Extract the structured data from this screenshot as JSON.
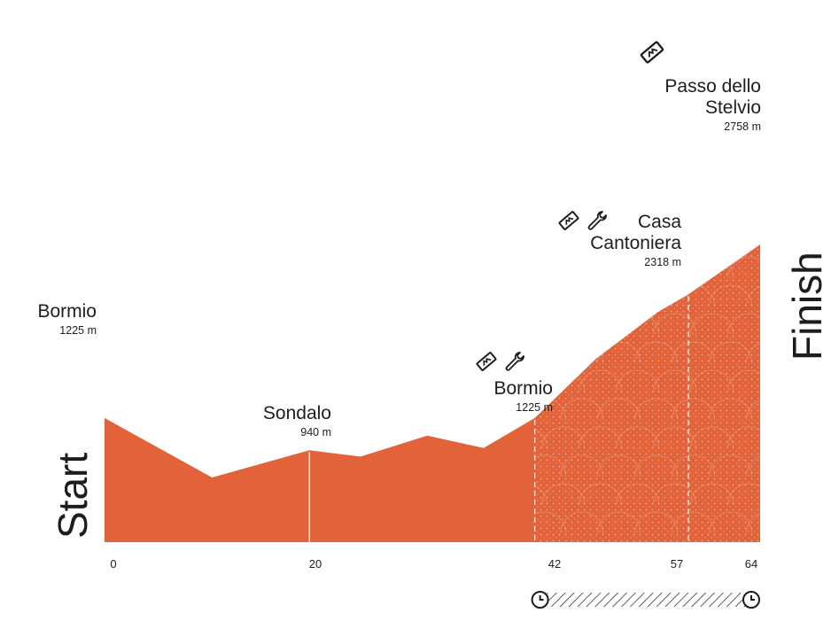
{
  "start_label": "Start",
  "finish_label": "Finish",
  "colors": {
    "fill": "#e2633a",
    "text": "#1d1d1d",
    "dots": "#ffffff"
  },
  "chart_data": {
    "type": "area",
    "xlabel": "",
    "ylabel": "",
    "xlim": [
      0,
      64
    ],
    "x_ticks": [
      "0",
      "20",
      "42",
      "57",
      "64"
    ],
    "profile": {
      "x": [
        0,
        10.5,
        20,
        25,
        31.5,
        37,
        42,
        48,
        54,
        57,
        64
      ],
      "y": [
        1225,
        700,
        940,
        885,
        1070,
        960,
        1225,
        1750,
        2160,
        2318,
        2758
      ]
    },
    "climb_start_km": 42,
    "timed_segment": [
      42,
      64
    ],
    "markers": [
      {
        "km": 20,
        "name": "Sondalo",
        "elevation": "940 m",
        "icons": []
      },
      {
        "km": 42,
        "name": "Bormio",
        "elevation": "1225 m",
        "icons": [
          "feed-zone-icon",
          "tech-assist-icon"
        ]
      },
      {
        "km": 57,
        "name": "Casa Cantoniera",
        "elevation": "2318 m",
        "icons": [
          "feed-zone-icon",
          "tech-assist-icon"
        ]
      }
    ],
    "start": {
      "km": 0,
      "name": "Bormio",
      "elevation": "1225 m"
    },
    "finish": {
      "km": 64,
      "name": "Passo dello Stelvio",
      "elevation": "2758 m",
      "icons": [
        "feed-zone-icon"
      ]
    }
  }
}
